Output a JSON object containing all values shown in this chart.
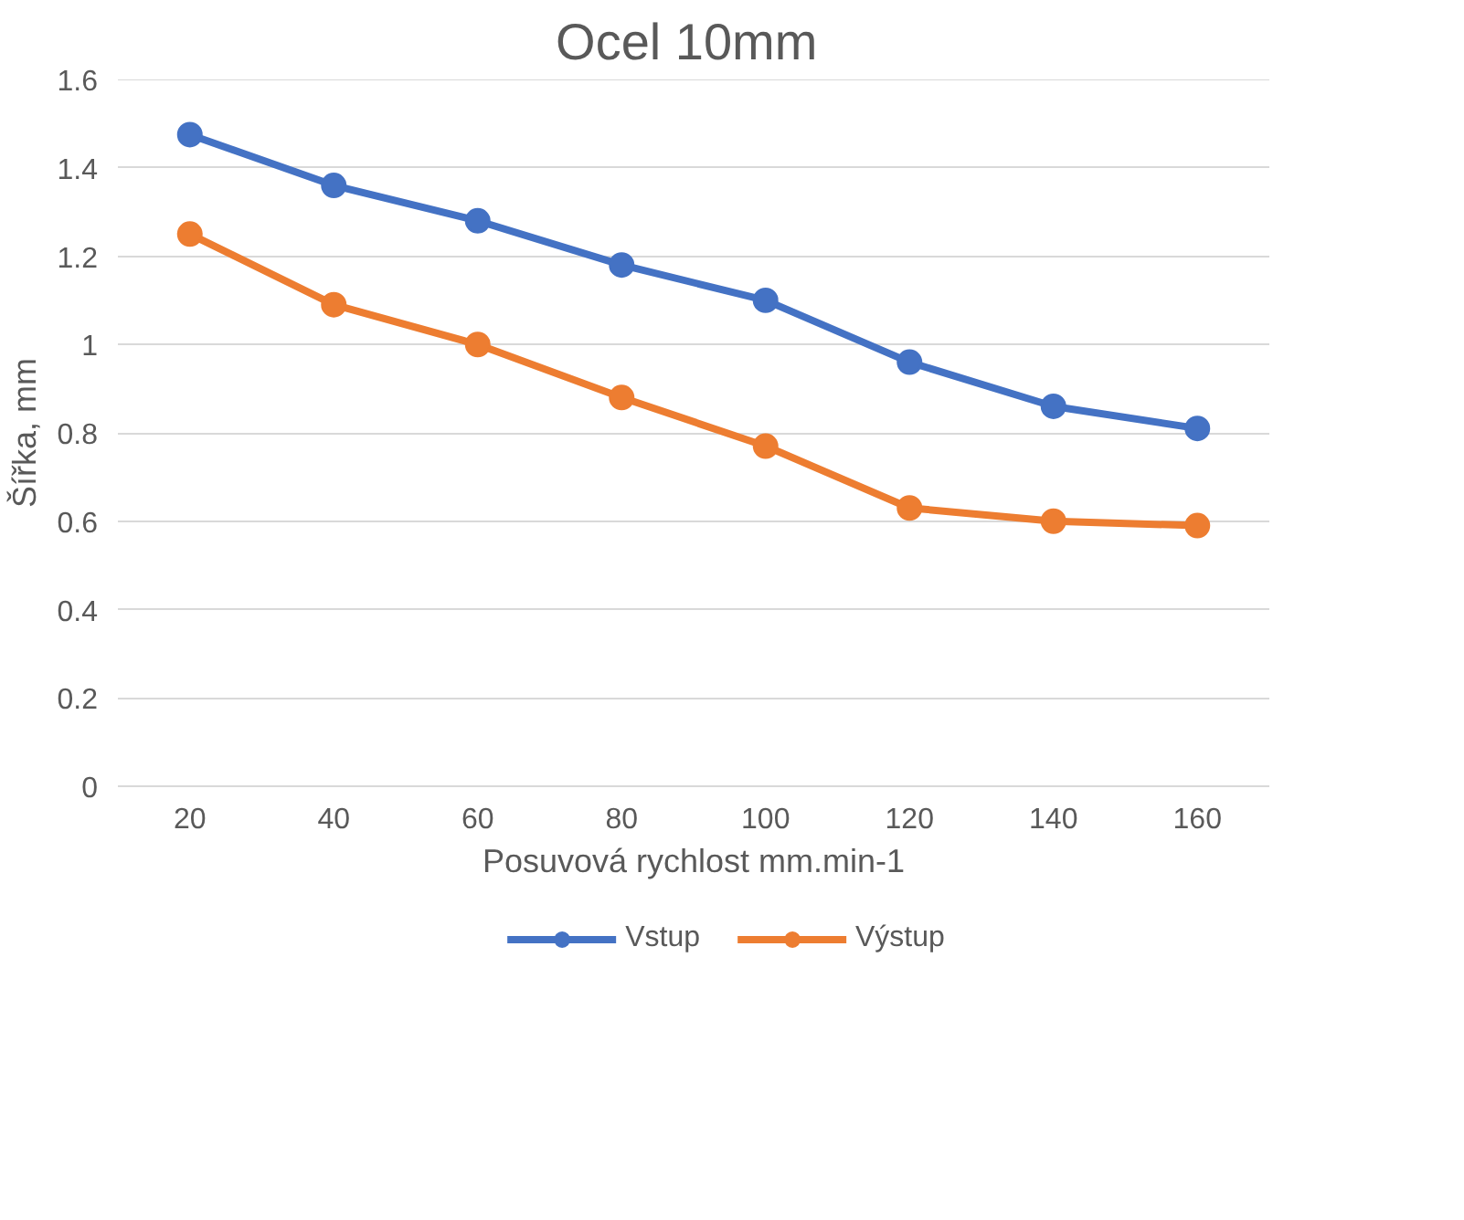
{
  "chart_data": {
    "type": "line",
    "title": "Ocel  10mm",
    "xlabel": "Posuvová rychlost mm.min-1",
    "ylabel": "Šířka, mm",
    "categories": [
      "20",
      "40",
      "60",
      "80",
      "100",
      "120",
      "140",
      "160"
    ],
    "series": [
      {
        "name": "Vstup",
        "color": "#4472c4",
        "values": [
          1.475,
          1.36,
          1.28,
          1.18,
          1.1,
          0.96,
          0.86,
          0.81
        ]
      },
      {
        "name": "Výstup",
        "color": "#ed7d31",
        "values": [
          1.25,
          1.09,
          1.0,
          0.88,
          0.77,
          0.63,
          0.6,
          0.59
        ]
      }
    ],
    "ylim": [
      0,
      1.6
    ],
    "yticks": [
      0,
      0.2,
      0.4,
      0.6,
      0.8,
      1,
      1.2,
      1.4,
      1.6
    ],
    "grid": "y",
    "legend": "bottom",
    "marker": "circle",
    "line_style": "solid"
  }
}
